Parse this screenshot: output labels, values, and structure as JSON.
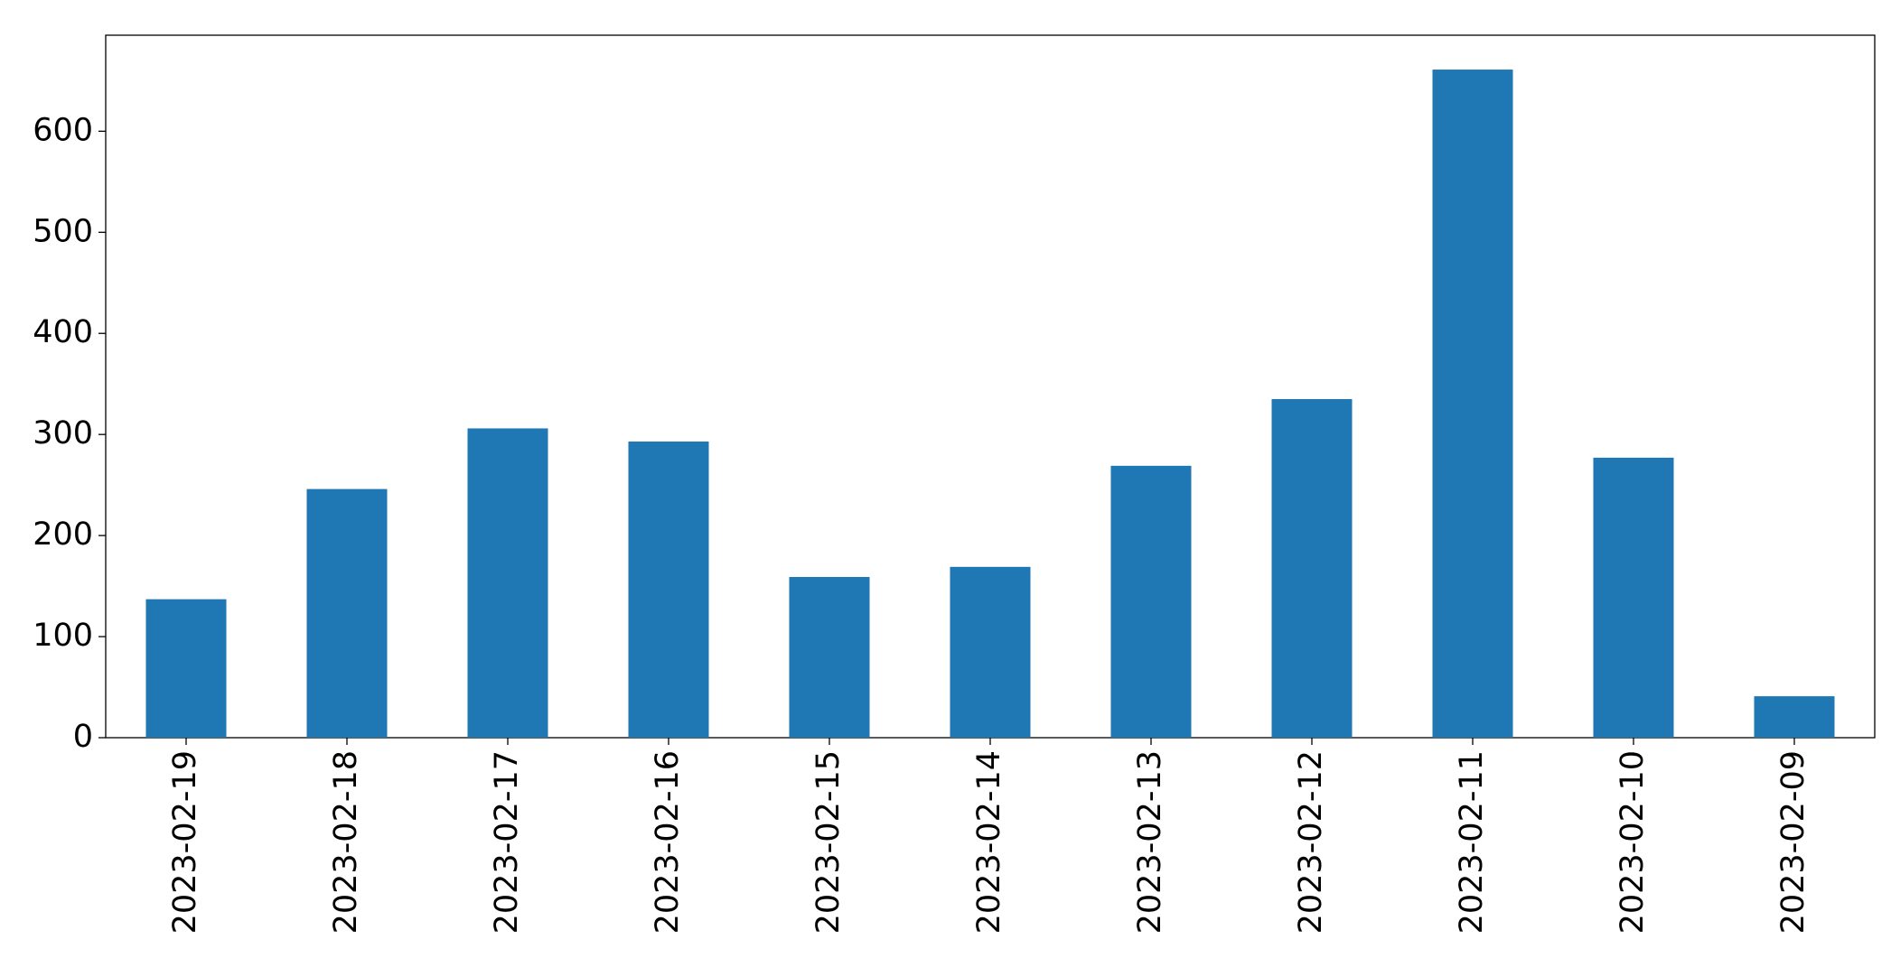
{
  "chart_data": {
    "type": "bar",
    "categories": [
      "2023-02-19",
      "2023-02-18",
      "2023-02-17",
      "2023-02-16",
      "2023-02-15",
      "2023-02-14",
      "2023-02-13",
      "2023-02-12",
      "2023-02-11",
      "2023-02-10",
      "2023-02-09"
    ],
    "values": [
      137,
      246,
      306,
      293,
      159,
      169,
      269,
      335,
      661,
      277,
      41
    ],
    "color": "#1f77b4",
    "ylim": [
      0,
      695
    ],
    "yticks": [
      0,
      100,
      200,
      300,
      400,
      500,
      600
    ],
    "grid": false
  }
}
